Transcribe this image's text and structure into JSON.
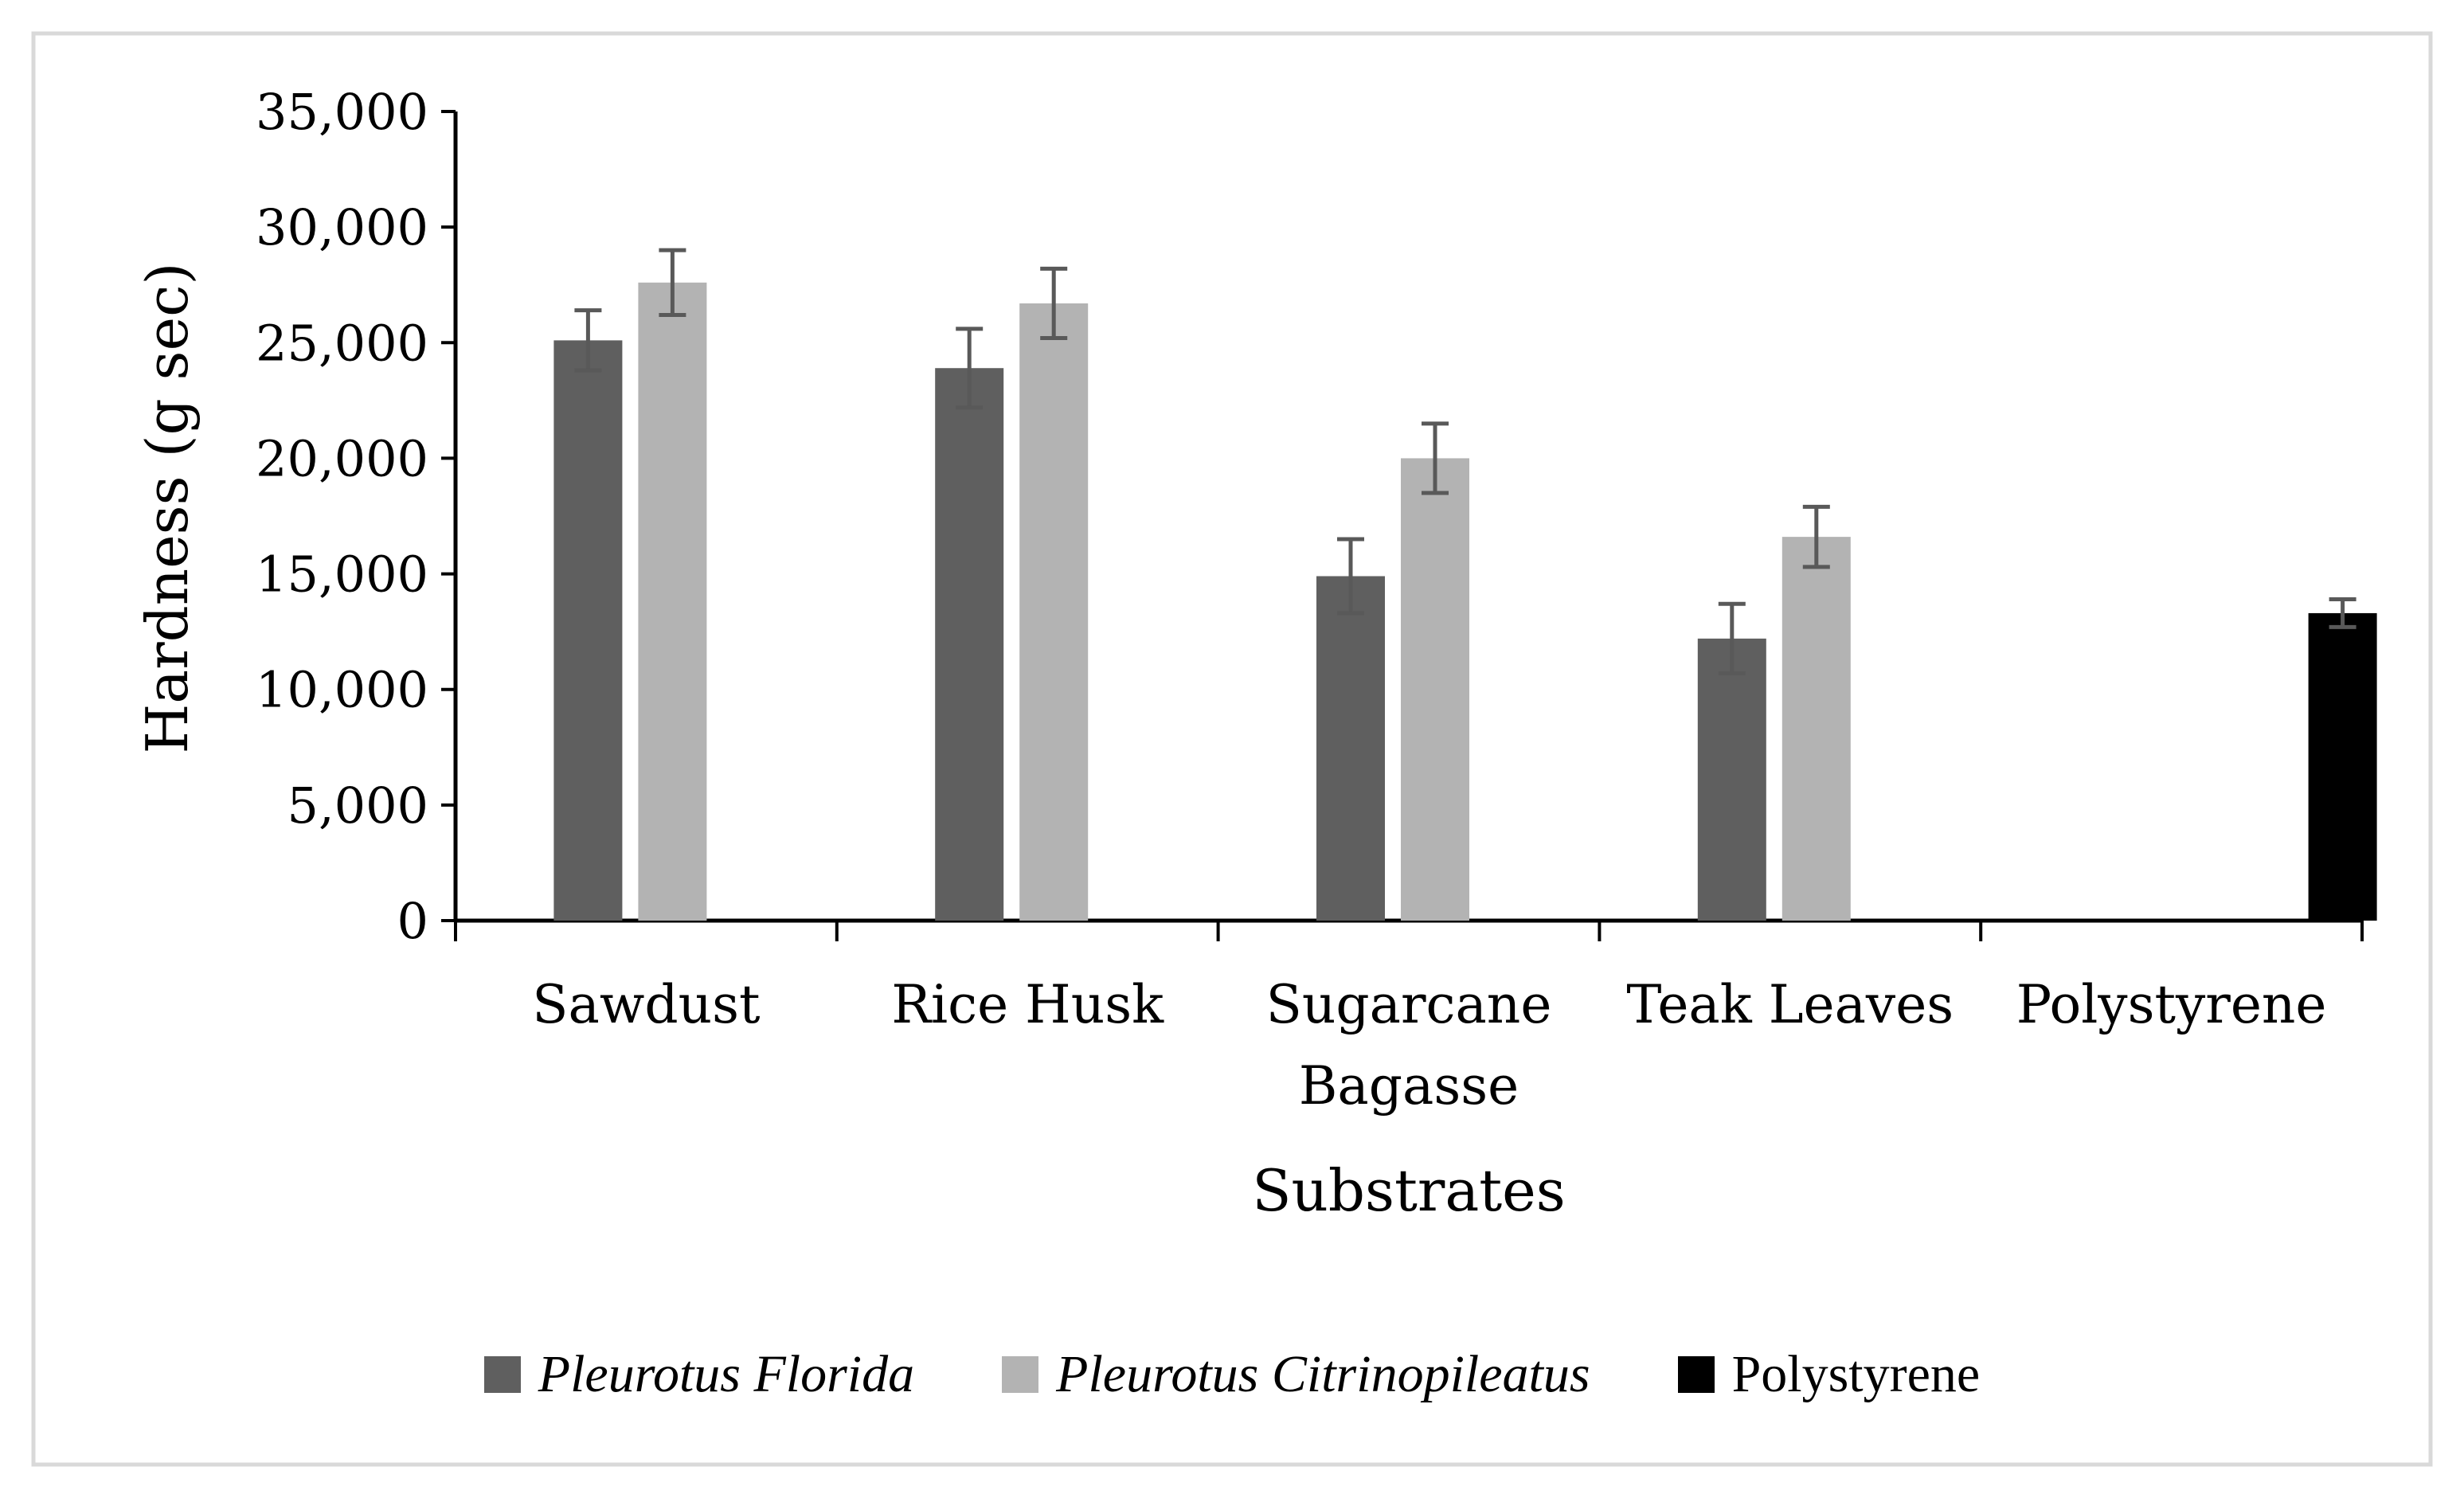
{
  "chart_data": {
    "type": "bar",
    "title": "",
    "xlabel": "Substrates",
    "ylabel": "Hardness (g sec)",
    "ylim": [
      0,
      35000
    ],
    "yticks": [
      0,
      5000,
      10000,
      15000,
      20000,
      25000,
      30000,
      35000
    ],
    "ytick_labels": [
      "0",
      "5,000",
      "10,000",
      "15,000",
      "20,000",
      "25,000",
      "30,000",
      "35,000"
    ],
    "categories": [
      {
        "lines": [
          "Sawdust"
        ]
      },
      {
        "lines": [
          "Rice Husk"
        ]
      },
      {
        "lines": [
          "Sugarcane",
          "Bagasse"
        ]
      },
      {
        "lines": [
          "Teak Leaves"
        ]
      },
      {
        "lines": [
          "Polystyrene"
        ]
      }
    ],
    "grid": false,
    "legend_position": "bottom",
    "series": [
      {
        "name": "Pleurotus Florida",
        "italic": true,
        "color": "#5f5f5f",
        "values": [
          25100,
          23900,
          14900,
          12200,
          null
        ],
        "errors": [
          1300,
          1700,
          1600,
          1500,
          null
        ]
      },
      {
        "name": "Pleurotus Citrinopileatus",
        "italic": true,
        "color": "#b3b3b3",
        "values": [
          27600,
          26700,
          20000,
          16600,
          null
        ],
        "errors": [
          1400,
          1500,
          1500,
          1300,
          null
        ]
      },
      {
        "name": "Polystyrene",
        "italic": false,
        "color": "#000000",
        "values": [
          null,
          null,
          null,
          null,
          13300
        ],
        "errors": [
          null,
          null,
          null,
          null,
          600
        ]
      }
    ],
    "error_bar_color": "#595959"
  }
}
